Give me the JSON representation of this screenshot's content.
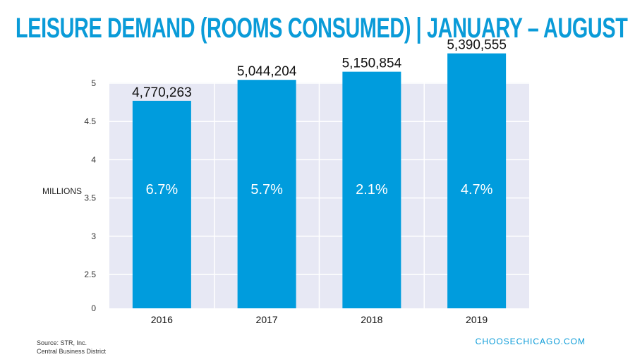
{
  "chart_data": {
    "type": "bar",
    "title": "LEISURE DEMAND (ROOMS CONSUMED) | JANUARY – AUGUST",
    "ylabel": "MILLIONS",
    "categories": [
      "2016",
      "2017",
      "2018",
      "2019"
    ],
    "values": [
      4.770263,
      5.044204,
      5.150854,
      5.390555
    ],
    "value_labels": [
      "4,770,263",
      "5,044,204",
      "5,150,854",
      "5,390,555"
    ],
    "pct_labels": [
      "6.7%",
      "5.7%",
      "2.1%",
      "4.7%"
    ],
    "yticks": [
      {
        "v": 0,
        "label": "0"
      },
      {
        "v": 2.5,
        "label": "2.5"
      },
      {
        "v": 3,
        "label": "3"
      },
      {
        "v": 3.5,
        "label": "3.5"
      },
      {
        "v": 4,
        "label": "4"
      },
      {
        "v": 4.5,
        "label": "4.5"
      },
      {
        "v": 5,
        "label": "5"
      }
    ],
    "grid": true,
    "colors": {
      "bar": "#009cdd",
      "plot_bg": "#e7e8f4",
      "grid": "#ffffff",
      "title": "#0a9bd8"
    }
  },
  "footer": {
    "source": "Source: STR, Inc.",
    "note": "Central Business District",
    "brand": "CHOOSECHICAGO.COM"
  }
}
